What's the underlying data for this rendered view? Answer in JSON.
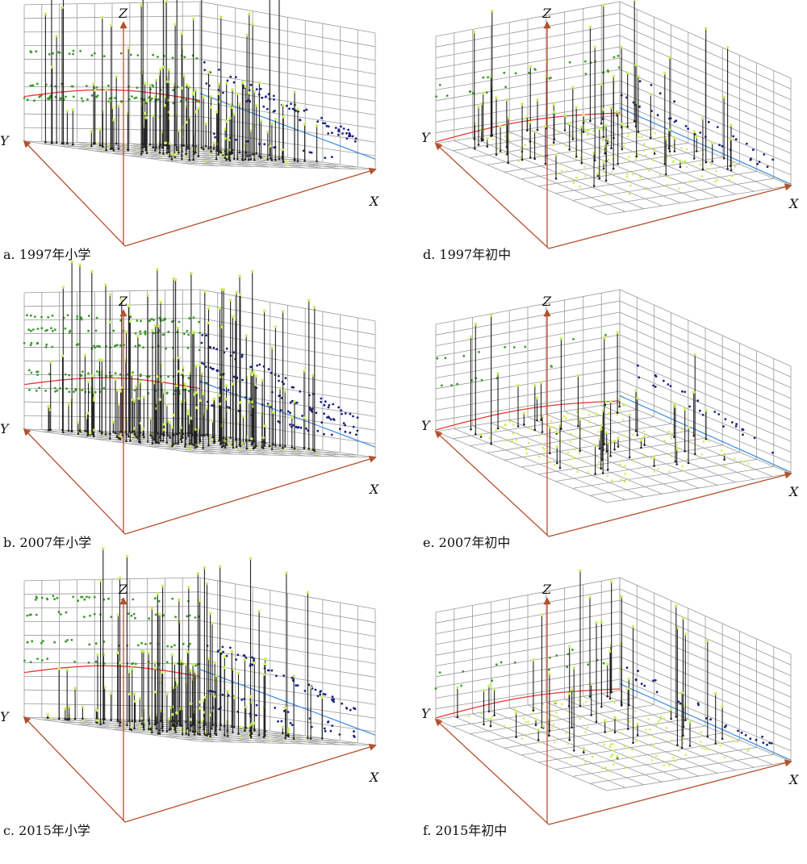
{
  "figure": {
    "axis_labels": {
      "x": "X",
      "y": "Y",
      "z": "Z"
    },
    "colors": {
      "grid": "#9a9a9a",
      "axis": "#b5502a",
      "stem": "#222222",
      "top_point": "#c7f25a",
      "wall_point_left": "#3a9a2a",
      "wall_point_right": "#1a237e",
      "trend_left": "#e53935",
      "trend_right": "#4a90e2"
    }
  },
  "chart_data": [
    {
      "type": "3d-scatter",
      "caption": "a. 1997年小学",
      "level": "小学",
      "year": "1997",
      "xlabel": "X",
      "ylabel": "Y",
      "zlabel": "Z",
      "density": "high",
      "grid": true
    },
    {
      "type": "3d-scatter",
      "caption": "b. 2007年小学",
      "level": "小学",
      "year": "2007",
      "xlabel": "X",
      "ylabel": "Y",
      "zlabel": "Z",
      "density": "very-high",
      "grid": true
    },
    {
      "type": "3d-scatter",
      "caption": "c. 2015年小学",
      "level": "小学",
      "year": "2015",
      "xlabel": "X",
      "ylabel": "Y",
      "zlabel": "Z",
      "density": "high",
      "grid": true
    },
    {
      "type": "3d-scatter",
      "caption": "d. 1997年初中",
      "level": "初中",
      "year": "1997",
      "xlabel": "X",
      "ylabel": "Y",
      "zlabel": "Z",
      "density": "medium",
      "grid": true
    },
    {
      "type": "3d-scatter",
      "caption": "e. 2007年初中",
      "level": "初中",
      "year": "2007",
      "xlabel": "X",
      "ylabel": "Y",
      "zlabel": "Z",
      "density": "low",
      "grid": true
    },
    {
      "type": "3d-scatter",
      "caption": "f. 2015年初中",
      "level": "初中",
      "year": "2015",
      "xlabel": "X",
      "ylabel": "Y",
      "zlabel": "Z",
      "density": "low",
      "grid": true
    }
  ]
}
